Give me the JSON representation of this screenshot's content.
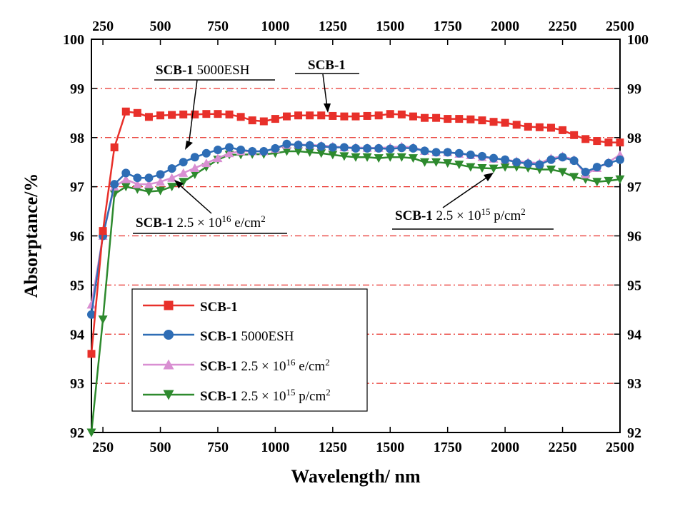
{
  "chart_data": {
    "type": "line",
    "xlabel": "Wavelength/ nm",
    "ylabel": "Absorptance/%",
    "xlim": [
      200,
      2500
    ],
    "ylim": [
      92,
      100
    ],
    "x_ticks": [
      250,
      500,
      750,
      1000,
      1250,
      1500,
      1750,
      2000,
      2250,
      2500
    ],
    "y_ticks": [
      92,
      93,
      94,
      95,
      96,
      97,
      98,
      99,
      100
    ],
    "grid": "horizontal dash-dot",
    "legend_position": "lower-left",
    "series": [
      {
        "name": "SCB-1",
        "sample": "SCB-1",
        "dose": "",
        "color": "#e8302a",
        "marker": "square",
        "x": [
          200,
          250,
          300,
          350,
          400,
          450,
          500,
          550,
          600,
          650,
          700,
          750,
          800,
          850,
          900,
          950,
          1000,
          1050,
          1100,
          1150,
          1200,
          1250,
          1300,
          1350,
          1400,
          1450,
          1500,
          1550,
          1600,
          1650,
          1700,
          1750,
          1800,
          1850,
          1900,
          1950,
          2000,
          2050,
          2100,
          2150,
          2200,
          2250,
          2300,
          2350,
          2400,
          2450,
          2500
        ],
        "y": [
          93.6,
          96.1,
          97.8,
          98.53,
          98.5,
          98.42,
          98.45,
          98.46,
          98.47,
          98.47,
          98.48,
          98.48,
          98.47,
          98.42,
          98.35,
          98.33,
          98.38,
          98.43,
          98.45,
          98.45,
          98.45,
          98.44,
          98.43,
          98.43,
          98.44,
          98.45,
          98.48,
          98.47,
          98.43,
          98.4,
          98.4,
          98.38,
          98.38,
          98.37,
          98.35,
          98.32,
          98.3,
          98.26,
          98.22,
          98.21,
          98.2,
          98.15,
          98.05,
          97.97,
          97.93,
          97.9,
          97.9
        ]
      },
      {
        "name": "SCB-1 5000ESH",
        "sample": "SCB-1",
        "dose": "5000ESH",
        "color": "#2e6db5",
        "marker": "circle",
        "x": [
          200,
          250,
          300,
          350,
          400,
          450,
          500,
          550,
          600,
          650,
          700,
          750,
          800,
          850,
          900,
          950,
          1000,
          1050,
          1100,
          1150,
          1200,
          1250,
          1300,
          1350,
          1400,
          1450,
          1500,
          1550,
          1600,
          1650,
          1700,
          1750,
          1800,
          1850,
          1900,
          1950,
          2000,
          2050,
          2100,
          2150,
          2200,
          2250,
          2300,
          2350,
          2400,
          2450,
          2500
        ],
        "y": [
          94.4,
          96.0,
          97.05,
          97.28,
          97.18,
          97.18,
          97.25,
          97.37,
          97.5,
          97.6,
          97.68,
          97.75,
          97.8,
          97.75,
          97.72,
          97.72,
          97.78,
          97.87,
          97.85,
          97.84,
          97.82,
          97.8,
          97.8,
          97.78,
          97.78,
          97.78,
          97.77,
          97.79,
          97.78,
          97.73,
          97.7,
          97.7,
          97.68,
          97.65,
          97.62,
          97.58,
          97.55,
          97.5,
          97.47,
          97.45,
          97.55,
          97.6,
          97.53,
          97.3,
          97.4,
          97.48,
          97.55
        ]
      },
      {
        "name": "SCB-1  2.5 × 10^16 e/cm^2",
        "sample": "SCB-1",
        "dose": "2.5 × 10^16 e/cm^2",
        "color": "#d98fd2",
        "marker": "triangle-up",
        "x": [
          200,
          250,
          300,
          350,
          400,
          450,
          500,
          550,
          600,
          650,
          700,
          750,
          800,
          850,
          900,
          950,
          1000,
          1050,
          1100,
          1150,
          1200,
          1250,
          1300,
          1350,
          1400,
          1450,
          1500,
          1550,
          1600,
          1650,
          1700,
          1750,
          1800,
          1850,
          1900,
          1950,
          2000,
          2050,
          2100,
          2150,
          2200,
          2250,
          2300,
          2350,
          2400,
          2450,
          2500
        ],
        "y": [
          94.6,
          96.0,
          97.0,
          97.15,
          97.05,
          97.05,
          97.1,
          97.18,
          97.28,
          97.38,
          97.48,
          97.58,
          97.68,
          97.72,
          97.72,
          97.72,
          97.77,
          97.85,
          97.86,
          97.85,
          97.84,
          97.82,
          97.8,
          97.8,
          97.79,
          97.79,
          97.8,
          97.82,
          97.8,
          97.73,
          97.7,
          97.7,
          97.67,
          97.64,
          97.6,
          97.57,
          97.55,
          97.52,
          97.5,
          97.48,
          97.58,
          97.62,
          97.55,
          97.25,
          97.38,
          97.5,
          97.65
        ]
      },
      {
        "name": "SCB-1  2.5 × 10^15 p/cm^2",
        "sample": "SCB-1",
        "dose": "2.5 × 10^15 p/cm^2",
        "color": "#2e8a2e",
        "marker": "triangle-down",
        "x": [
          200,
          250,
          300,
          350,
          400,
          450,
          500,
          550,
          600,
          650,
          700,
          750,
          800,
          850,
          900,
          950,
          1000,
          1050,
          1100,
          1150,
          1200,
          1250,
          1300,
          1350,
          1400,
          1450,
          1500,
          1550,
          1600,
          1650,
          1700,
          1750,
          1800,
          1850,
          1900,
          1950,
          2000,
          2050,
          2100,
          2150,
          2200,
          2250,
          2300,
          2350,
          2400,
          2450,
          2500
        ],
        "y": [
          91.8,
          94.3,
          96.85,
          97.0,
          96.95,
          96.9,
          96.92,
          97.0,
          97.1,
          97.25,
          97.4,
          97.55,
          97.65,
          97.65,
          97.66,
          97.66,
          97.68,
          97.72,
          97.72,
          97.7,
          97.68,
          97.65,
          97.62,
          97.6,
          97.6,
          97.58,
          97.6,
          97.6,
          97.58,
          97.5,
          97.5,
          97.48,
          97.45,
          97.4,
          97.38,
          97.37,
          97.4,
          97.4,
          97.38,
          97.35,
          97.35,
          97.3,
          97.2,
          97.15,
          97.1,
          97.12,
          97.15
        ]
      }
    ],
    "annotations": [
      {
        "bold": "SCB-1",
        "rest": " 5000ESH",
        "sup1": "",
        "rest2": ""
      },
      {
        "bold": "SCB-1",
        "rest": "",
        "sup1": "",
        "rest2": ""
      },
      {
        "bold": "SCB-1",
        "rest": "  2.5 × 10",
        "sup1": "16",
        "rest2": " e/cm"
      },
      {
        "bold": "SCB-1",
        "rest": "  2.5 × 10",
        "sup1": "15",
        "rest2": " p/cm"
      }
    ],
    "legend": [
      {
        "bold": "SCB-1",
        "rest": "",
        "sup1": "",
        "rest2": ""
      },
      {
        "bold": "SCB-1",
        "rest": " 5000ESH",
        "sup1": "",
        "rest2": ""
      },
      {
        "bold": "SCB-1",
        "rest": "  2.5 × 10",
        "sup1": "16",
        "rest2": " e/cm"
      },
      {
        "bold": "SCB-1",
        "rest": "  2.5 × 10",
        "sup1": "15",
        "rest2": " p/cm"
      }
    ],
    "sup2": "2"
  }
}
